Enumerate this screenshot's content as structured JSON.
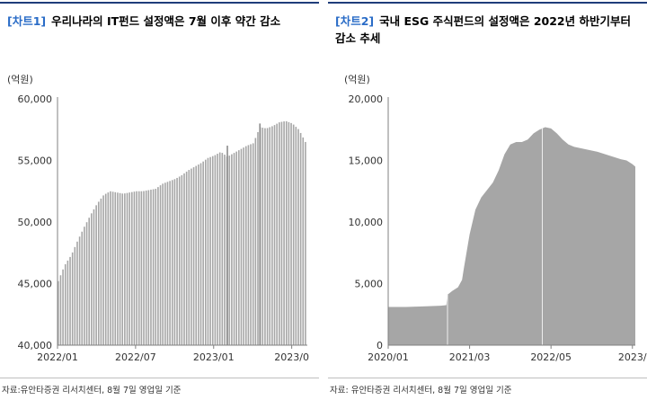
{
  "charts": [
    {
      "tag": "[차트1]",
      "title": "우리나라의 IT펀드 설정액은 7월 이후 약간 감소",
      "unit": "(억원)",
      "source": "자료:유안타증권 리서치센터, 8월 7일 영업일 기준",
      "color": "#a6a6a6"
    },
    {
      "tag": "[차트2]",
      "title": "국내 ESG 주식펀드의 설정액은 2022년 하반기부터 감소 추세",
      "unit": "(억원)",
      "source": "자료: 유안타증권 리서치센터, 8월 7일 영업일 기준",
      "color": "#a6a6a6"
    }
  ],
  "chart_data": [
    {
      "type": "bar",
      "ylim": [
        40000,
        60000
      ],
      "yticks": [
        "40,000",
        "45,000",
        "50,000",
        "55,000",
        "60,000"
      ],
      "ytick_values": [
        40000,
        45000,
        50000,
        55000,
        60000
      ],
      "xtick_labels": [
        "2022/01",
        "2022/07",
        "2023/01",
        "2023/0"
      ],
      "xtick_positions": [
        0,
        6,
        12,
        18
      ],
      "x_range": [
        0,
        19.2
      ],
      "series": [
        {
          "points": [
            [
              0,
              45200
            ],
            [
              0.5,
              46500
            ],
            [
              1,
              47300
            ],
            [
              1.5,
              48500
            ],
            [
              2,
              49600
            ],
            [
              2.5,
              50600
            ],
            [
              3,
              51500
            ],
            [
              3.5,
              52200
            ],
            [
              4,
              52500
            ],
            [
              4.5,
              52400
            ],
            [
              5,
              52300
            ],
            [
              5.5,
              52400
            ],
            [
              6,
              52500
            ],
            [
              6.5,
              52500
            ],
            [
              7,
              52600
            ],
            [
              7.5,
              52700
            ],
            [
              8,
              53100
            ],
            [
              8.5,
              53300
            ],
            [
              9,
              53500
            ],
            [
              9.5,
              53800
            ],
            [
              10,
              54200
            ],
            [
              10.5,
              54500
            ],
            [
              11,
              54800
            ],
            [
              11.5,
              55200
            ],
            [
              12,
              55400
            ],
            [
              12.5,
              55700
            ],
            [
              13,
              55300
            ],
            [
              13.5,
              55600
            ],
            [
              14,
              55900
            ],
            [
              14.5,
              56200
            ],
            [
              15,
              56400
            ],
            [
              15.5,
              57700
            ],
            [
              16,
              57600
            ],
            [
              16.5,
              57800
            ],
            [
              17,
              58100
            ],
            [
              17.5,
              58200
            ],
            [
              18,
              58000
            ],
            [
              18.5,
              57500
            ],
            [
              19,
              56500
            ]
          ],
          "spikes": [
            [
              13,
              56200
            ],
            [
              15.5,
              58000
            ]
          ]
        }
      ]
    },
    {
      "type": "area",
      "ylim": [
        0,
        20000
      ],
      "yticks": [
        "0",
        "5,000",
        "10,000",
        "15,000",
        "20,000"
      ],
      "ytick_values": [
        0,
        5000,
        10000,
        15000,
        20000
      ],
      "xtick_labels": [
        "2020/01",
        "2021/03",
        "2022/05",
        "2023/"
      ],
      "xtick_positions": [
        0,
        14,
        28,
        42
      ],
      "x_range": [
        0,
        42.5
      ],
      "series": [
        {
          "points": [
            [
              0,
              3100
            ],
            [
              3,
              3100
            ],
            [
              6,
              3150
            ],
            [
              9,
              3200
            ],
            [
              10,
              3250
            ],
            [
              10.2,
              4100
            ],
            [
              11,
              4400
            ],
            [
              12,
              4700
            ],
            [
              12.7,
              5300
            ],
            [
              13,
              6200
            ],
            [
              14,
              9000
            ],
            [
              15,
              11000
            ],
            [
              16,
              12000
            ],
            [
              17,
              12600
            ],
            [
              18,
              13200
            ],
            [
              19,
              14200
            ],
            [
              20,
              15500
            ],
            [
              21,
              16300
            ],
            [
              22,
              16500
            ],
            [
              23,
              16500
            ],
            [
              24,
              16700
            ],
            [
              25,
              17200
            ],
            [
              26,
              17500
            ],
            [
              27,
              17700
            ],
            [
              28,
              17600
            ],
            [
              29,
              17200
            ],
            [
              30,
              16700
            ],
            [
              31,
              16300
            ],
            [
              32,
              16100
            ],
            [
              34,
              15900
            ],
            [
              36,
              15700
            ],
            [
              38,
              15400
            ],
            [
              40,
              15100
            ],
            [
              41,
              15000
            ],
            [
              42,
              14700
            ],
            [
              42.5,
              14500
            ]
          ]
        }
      ]
    }
  ]
}
